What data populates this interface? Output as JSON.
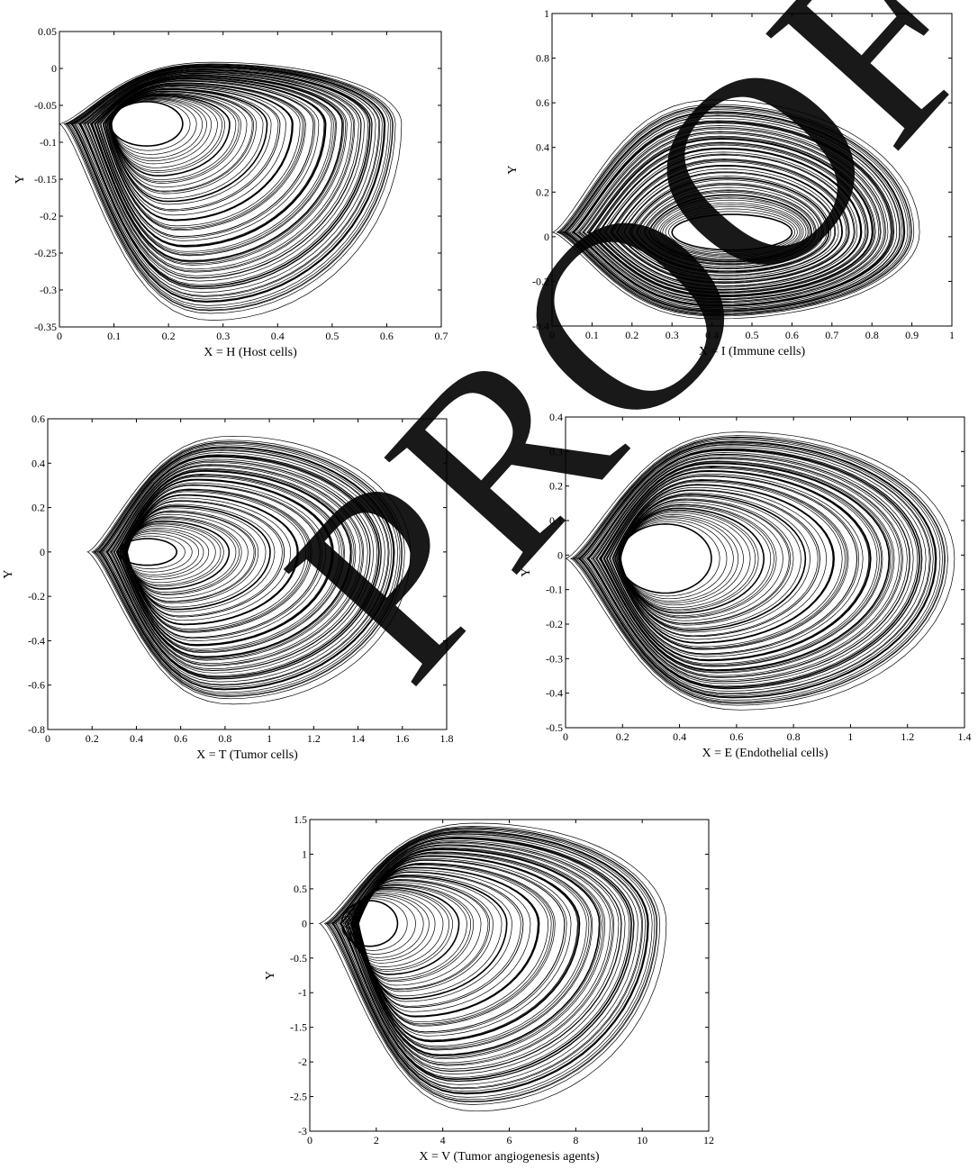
{
  "watermark": {
    "text": "PROOF",
    "color": "#555555"
  },
  "colors": {
    "trace": "#000000",
    "frame": "#000000",
    "background": "#ffffff"
  },
  "chart_data": [
    {
      "type": "line",
      "xlabel": "X = H (Host cells)",
      "ylabel": "Y",
      "xlim": [
        0,
        0.7
      ],
      "ylim": [
        -0.35,
        0.05
      ],
      "xticks": [
        0,
        0.1,
        0.2,
        0.3,
        0.4,
        0.5,
        0.6,
        0.7
      ],
      "yticks": [
        -0.35,
        -0.3,
        -0.25,
        -0.2,
        -0.15,
        -0.1,
        -0.05,
        0,
        0.05
      ],
      "xtick_labels": [
        "0",
        "0.1",
        "0.2",
        "0.3",
        "0.4",
        "0.5",
        "0.6",
        "0.7"
      ],
      "ytick_labels": [
        "-0.35",
        "-0.3",
        "-0.25",
        "-0.2",
        "-0.15",
        "-0.1",
        "-0.05",
        "0",
        "0.05"
      ],
      "attractor": {
        "origin": [
          0,
          0
        ],
        "x_max": 0.62,
        "y_top": 0.007,
        "y_bottom": -0.335,
        "x_at_bottom": 0.35,
        "x_at_top": 0.05
      },
      "inner_spiral": {
        "center": [
          0.16,
          -0.075
        ],
        "rx": 0.11,
        "ry": 0.03
      },
      "grid": false
    },
    {
      "type": "line",
      "xlabel": "X = I (Immune cells)",
      "ylabel": "Y",
      "xlim": [
        0,
        1
      ],
      "ylim": [
        -0.4,
        1
      ],
      "xticks": [
        0,
        0.1,
        0.2,
        0.3,
        0.4,
        0.5,
        0.6,
        0.7,
        0.8,
        0.9,
        1
      ],
      "yticks": [
        -0.4,
        -0.2,
        0,
        0.2,
        0.4,
        0.6,
        0.8,
        1
      ],
      "xtick_labels": [
        "0",
        "0.1",
        "0.2",
        "0.3",
        "0.4",
        "0.5",
        "0.6",
        "0.7",
        "0.8",
        "0.9",
        "1"
      ],
      "ytick_labels": [
        "-0.4",
        "-0.2",
        "0",
        "0.2",
        "0.4",
        "0.6",
        "0.8",
        "1"
      ],
      "attractor": {
        "origin": [
          0,
          0
        ],
        "x_max": 0.91,
        "y_top": 0.6,
        "y_bottom": -0.36,
        "x_at_bottom": 0.65,
        "x_at_top": 0.65
      },
      "inner_spiral": {
        "center": [
          0.45,
          0.02
        ],
        "rx": 0.25,
        "ry": 0.08
      },
      "grid": false
    },
    {
      "type": "line",
      "xlabel": "X = T (Tumor cells)",
      "ylabel": "Y",
      "xlim": [
        0,
        1.8
      ],
      "ylim": [
        -0.8,
        0.6
      ],
      "xticks": [
        0,
        0.2,
        0.4,
        0.6,
        0.8,
        1,
        1.2,
        1.4,
        1.6,
        1.8
      ],
      "yticks": [
        -0.8,
        -0.6,
        -0.4,
        -0.2,
        0,
        0.2,
        0.4,
        0.6
      ],
      "xtick_labels": [
        "0",
        "0.2",
        "0.4",
        "0.6",
        "0.8",
        "1",
        "1.2",
        "1.4",
        "1.6",
        "1.8"
      ],
      "ytick_labels": [
        "-0.8",
        "-0.6",
        "-0.4",
        "-0.2",
        "0",
        "0.2",
        "0.4",
        "0.6"
      ],
      "attractor": {
        "origin": [
          0.18,
          0
        ],
        "x_max": 1.62,
        "y_top": 0.51,
        "y_bottom": -0.67,
        "x_at_bottom": 0.9,
        "x_at_top": 1.0
      },
      "inner_spiral": {
        "center": [
          0.45,
          0.0
        ],
        "rx": 0.22,
        "ry": 0.06
      },
      "grid": false
    },
    {
      "type": "line",
      "xlabel": "X = E (Endothelial cells)",
      "ylabel": "Y",
      "xlim": [
        0,
        1.4
      ],
      "ylim": [
        -0.5,
        0.4
      ],
      "xticks": [
        0,
        0.2,
        0.4,
        0.6,
        0.8,
        1,
        1.2,
        1.4
      ],
      "yticks": [
        -0.5,
        -0.4,
        -0.3,
        -0.2,
        -0.1,
        0,
        0.1,
        0.2,
        0.3,
        0.4
      ],
      "xtick_labels": [
        "0",
        "0.2",
        "0.4",
        "0.6",
        "0.8",
        "1",
        "1.2",
        "1.4"
      ],
      "ytick_labels": [
        "-0.5",
        "-0.4",
        "-0.3",
        "-0.2",
        "-0.1",
        "0",
        "0.1",
        "0.2",
        "0.3",
        "0.4"
      ],
      "attractor": {
        "origin": [
          0,
          0
        ],
        "x_max": 1.35,
        "y_top": 0.35,
        "y_bottom": -0.44,
        "x_at_bottom": 0.95,
        "x_at_top": 1.0
      },
      "inner_spiral": {
        "center": [
          0.35,
          -0.01
        ],
        "rx": 0.27,
        "ry": 0.1
      },
      "grid": false
    },
    {
      "type": "line",
      "xlabel": "X = V (Tumor angiogenesis agents)",
      "ylabel": "Y",
      "xlim": [
        0,
        12
      ],
      "ylim": [
        -3,
        1.5
      ],
      "xticks": [
        0,
        2,
        4,
        6,
        8,
        10,
        12
      ],
      "yticks": [
        -3,
        -2.5,
        -2,
        -1.5,
        -1,
        -0.5,
        0,
        0.5,
        1,
        1.5
      ],
      "xtick_labels": [
        "0",
        "2",
        "4",
        "6",
        "8",
        "10",
        "12"
      ],
      "ytick_labels": [
        "-3",
        "-2.5",
        "-2",
        "-1.5",
        "-1",
        "-0.5",
        "0",
        "0.5",
        "1",
        "1.5"
      ],
      "attractor": {
        "origin": [
          0.3,
          0
        ],
        "x_max": 10.6,
        "y_top": 1.42,
        "y_bottom": -2.65,
        "x_at_bottom": 5.9,
        "x_at_top": 7.3
      },
      "inner_spiral": {
        "center": [
          1.8,
          0.0
        ],
        "rx": 1.4,
        "ry": 0.33
      },
      "grid": false
    }
  ]
}
